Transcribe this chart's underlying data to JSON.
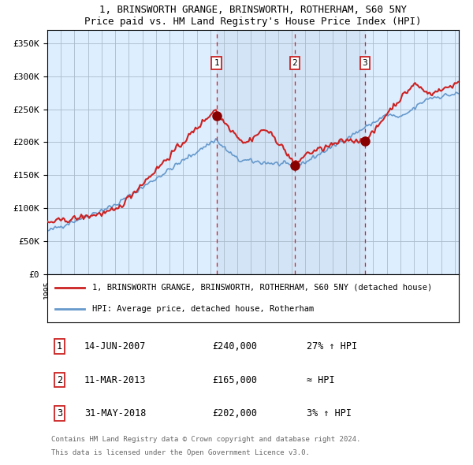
{
  "title1": "1, BRINSWORTH GRANGE, BRINSWORTH, ROTHERHAM, S60 5NY",
  "title2": "Price paid vs. HM Land Registry's House Price Index (HPI)",
  "ylim": [
    0,
    370000
  ],
  "yticks": [
    0,
    50000,
    100000,
    150000,
    200000,
    250000,
    300000,
    350000
  ],
  "ytick_labels": [
    "£0",
    "£50K",
    "£100K",
    "£150K",
    "£200K",
    "£250K",
    "£300K",
    "£350K"
  ],
  "hpi_color": "#6699cc",
  "property_color": "#cc2222",
  "bg_color": "#ddeeff",
  "grid_color": "#aabbcc",
  "sale1_price": 240000,
  "sale1_date": "14-JUN-2007",
  "sale1_label": "27% ↑ HPI",
  "sale2_price": 165000,
  "sale2_date": "11-MAR-2013",
  "sale2_label": "≈ HPI",
  "sale3_price": 202000,
  "sale3_date": "31-MAY-2018",
  "sale3_label": "3% ↑ HPI",
  "legend1": "1, BRINSWORTH GRANGE, BRINSWORTH, ROTHERHAM, S60 5NY (detached house)",
  "legend2": "HPI: Average price, detached house, Rotherham",
  "footer1": "Contains HM Land Registry data © Crown copyright and database right 2024.",
  "footer2": "This data is licensed under the Open Government Licence v3.0."
}
